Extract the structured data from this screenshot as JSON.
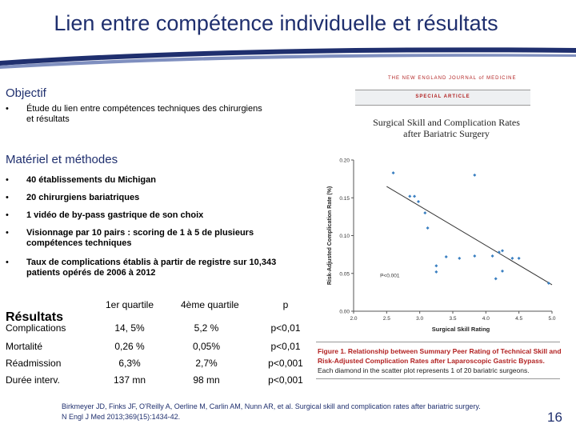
{
  "title": "Lien entre compétence individuelle et  résultats",
  "objectif": {
    "heading": "Objectif",
    "bullets": [
      "Étude du lien entre compétences techniques des chirurgiens et résultats"
    ]
  },
  "methodes": {
    "heading": "Matériel et méthodes",
    "bullets": [
      "40 établissements du Michigan",
      "20 chirurgiens bariatriques",
      "1 vidéo de by-pass gastrique de son choix",
      "Visionnage par 10 pairs : scoring de 1 à 5 de plusieurs compétences techniques",
      "Taux de complications établis à partir de registre sur 10,343 patients opérés de 2006 à 2012"
    ]
  },
  "resultats": {
    "heading": "Résultats",
    "columns": [
      "1er quartile",
      "4ème quartile",
      "p"
    ],
    "rows": [
      {
        "label": "Complications",
        "q1": "14, 5%",
        "q4": "5,2 %",
        "p": "p<0,01"
      },
      {
        "label": "Mortalité",
        "q1": "0,26 %",
        "q4": "0,05%",
        "p": "p<0,01"
      },
      {
        "label": "Réadmission",
        "q1": "6,3%",
        "q4": "2,7%",
        "p": "p<0,001"
      },
      {
        "label": "Durée interv.",
        "q1": "137 mn",
        "q4": "98 mn",
        "p": "p<0,001"
      }
    ]
  },
  "paper": {
    "journal": "THE NEW ENGLAND JOURNAL of MEDICINE",
    "article_type": "SPECIAL ARTICLE",
    "title_line1": "Surgical Skill and Complication Rates",
    "title_line2": "after Bariatric Surgery",
    "figure_label": "Figure 1.",
    "figure_caption": "Relationship between Summary Peer Rating of Technical Skill and Risk-Adjusted Complication Rates after Laparoscopic Gastric Bypass.",
    "figure_note": "Each diamond in the scatter plot represents 1 of 20 bariatric surgeons."
  },
  "chart_data": {
    "type": "scatter",
    "xlabel": "Surgical Skill Rating",
    "ylabel": "Risk-Adjusted Complication Rate (%)",
    "xlim": [
      2.0,
      5.0
    ],
    "ylim": [
      0.0,
      0.2
    ],
    "xticks": [
      "2.0",
      "2.5",
      "3.0",
      "3.5",
      "4.0",
      "4.5",
      "5.0"
    ],
    "yticks": [
      "0.00",
      "0.05",
      "0.10",
      "0.15",
      "0.20"
    ],
    "annotation": "P<0.001",
    "trendline": [
      [
        2.5,
        0.165
      ],
      [
        5.0,
        0.035
      ]
    ],
    "points": [
      [
        2.6,
        0.183
      ],
      [
        2.85,
        0.152
      ],
      [
        2.92,
        0.152
      ],
      [
        2.98,
        0.145
      ],
      [
        3.08,
        0.13
      ],
      [
        3.12,
        0.11
      ],
      [
        3.25,
        0.06
      ],
      [
        3.25,
        0.052
      ],
      [
        3.4,
        0.072
      ],
      [
        3.6,
        0.07
      ],
      [
        3.83,
        0.18
      ],
      [
        3.83,
        0.073
      ],
      [
        4.1,
        0.073
      ],
      [
        4.15,
        0.043
      ],
      [
        4.2,
        0.078
      ],
      [
        4.25,
        0.053
      ],
      [
        4.25,
        0.08
      ],
      [
        4.4,
        0.07
      ],
      [
        4.5,
        0.07
      ],
      [
        4.95,
        0.037
      ]
    ],
    "colors": {
      "points": "#3a7fc1",
      "line": "#333333"
    }
  },
  "reference": {
    "line1": "Birkmeyer JD, Finks JF, O'Reilly A, Oerline M, Carlin AM, Nunn AR, et al. Surgical skill and complication rates after bariatric surgery.",
    "line2": "N Engl J Med 2013;369(15):1434-42."
  },
  "page_number": "16"
}
